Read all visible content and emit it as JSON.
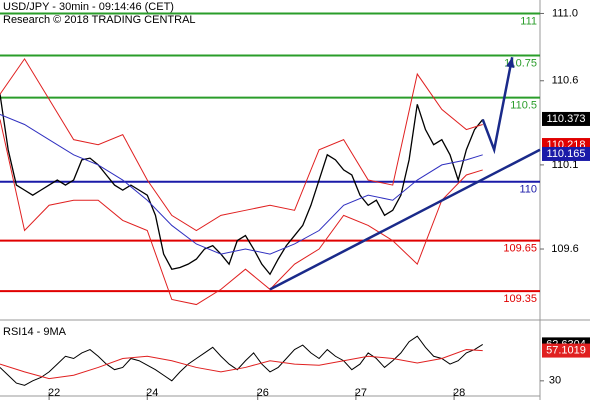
{
  "chart_data": {
    "type": "line",
    "title": "USD/JPY - 30min - 09:14:46 (CET)",
    "subtitle": "Research © 2018 TRADING CENTRAL",
    "xlim": [
      0,
      66
    ],
    "xticks": [
      {
        "value": 6,
        "label": "22"
      },
      {
        "value": 18,
        "label": "24"
      },
      {
        "value": 31.5,
        "label": "26"
      },
      {
        "value": 43.5,
        "label": "27"
      },
      {
        "value": 55.5,
        "label": "28"
      }
    ],
    "ylim": [
      109.19,
      111.08
    ],
    "yticks": [
      {
        "value": 111,
        "label": "111.0"
      },
      110.6,
      110.1,
      109.6
    ],
    "series": [
      {
        "name": "Price",
        "color": "#000000",
        "x": [
          0,
          1,
          2,
          3,
          4,
          5,
          6,
          7,
          8,
          9,
          10,
          11,
          12,
          13,
          14,
          15,
          16,
          17,
          18,
          19,
          20,
          21,
          22,
          23,
          24,
          25,
          26,
          27,
          28,
          29,
          30,
          31,
          32,
          33,
          34,
          35,
          36,
          37,
          38,
          39,
          40,
          41,
          42,
          43,
          44,
          45,
          46,
          47,
          48,
          49,
          50,
          51,
          52,
          53,
          54,
          55,
          56,
          57,
          58,
          59
        ],
        "values": [
          110.52,
          110.19,
          109.98,
          109.95,
          109.92,
          109.95,
          109.98,
          110.01,
          109.98,
          110.01,
          110.13,
          110.14,
          110.1,
          110.04,
          109.98,
          109.95,
          109.98,
          109.95,
          109.92,
          109.8,
          109.57,
          109.48,
          109.49,
          109.51,
          109.54,
          109.6,
          109.62,
          109.57,
          109.51,
          109.65,
          109.68,
          109.6,
          109.51,
          109.45,
          109.54,
          109.62,
          109.68,
          109.74,
          109.86,
          110.01,
          110.16,
          110.13,
          110.07,
          110.04,
          109.92,
          109.86,
          109.89,
          109.8,
          109.83,
          109.92,
          110.13,
          110.46,
          110.31,
          110.22,
          110.25,
          110.16,
          110.01,
          110.19,
          110.31,
          110.37
        ]
      },
      {
        "name": "Upper band",
        "color": "#e02020",
        "x": [
          0,
          3,
          6,
          9,
          12,
          15,
          18,
          21,
          24,
          27,
          30,
          33,
          36,
          39,
          42,
          45,
          48,
          51,
          54,
          57,
          59
        ],
        "values": [
          110.52,
          110.73,
          110.49,
          110.25,
          110.22,
          110.28,
          110.01,
          109.8,
          109.71,
          109.8,
          109.83,
          109.86,
          109.83,
          110.19,
          110.25,
          110.01,
          109.98,
          110.64,
          110.43,
          110.31,
          110.34
        ]
      },
      {
        "name": "Lower band",
        "color": "#e02020",
        "x": [
          0,
          3,
          6,
          9,
          12,
          15,
          18,
          21,
          24,
          27,
          30,
          33,
          36,
          39,
          42,
          45,
          48,
          51,
          54,
          57,
          59
        ],
        "values": [
          110.37,
          109.71,
          109.86,
          109.89,
          109.89,
          109.77,
          109.71,
          109.3,
          109.27,
          109.36,
          109.48,
          109.36,
          109.51,
          109.6,
          109.8,
          109.74,
          109.65,
          109.51,
          109.89,
          110.04,
          110.07
        ]
      },
      {
        "name": "MA",
        "color": "#3030c0",
        "x": [
          0,
          3,
          6,
          9,
          12,
          15,
          18,
          21,
          24,
          27,
          30,
          33,
          36,
          39,
          42,
          45,
          48,
          51,
          54,
          57,
          59
        ],
        "values": [
          110.4,
          110.34,
          110.25,
          110.16,
          110.1,
          110.01,
          109.89,
          109.74,
          109.63,
          109.57,
          109.6,
          109.57,
          109.63,
          109.71,
          109.86,
          109.92,
          109.89,
          110.01,
          110.1,
          110.13,
          110.16
        ]
      }
    ],
    "levels": [
      {
        "value": 111,
        "color": "#2a9d2a"
      },
      {
        "value": 110.75,
        "color": "#2a9d2a"
      },
      {
        "value": 110.5,
        "color": "#2a9d2a"
      },
      {
        "value": 110,
        "color": "#1a1aa8"
      },
      {
        "value": 109.65,
        "color": "#e00000"
      },
      {
        "value": 109.35,
        "color": "#e00000"
      }
    ],
    "trendline": {
      "color": "#1a2a8a",
      "x": [
        33,
        66
      ],
      "values": [
        109.36,
        110.19
      ]
    },
    "projection": {
      "color": "#1a2a8a",
      "x": [
        59,
        60.4,
        62.6
      ],
      "values": [
        110.37,
        110.19,
        110.74
      ]
    },
    "price_boxes": [
      {
        "value": 110.373,
        "color": "#000000"
      },
      {
        "value": 110.218,
        "color": "#e00000"
      },
      {
        "value": 110.165,
        "color": "#1a1aa8"
      }
    ],
    "rsi": {
      "label": "RSI14 - 9MA",
      "ylim": [
        20,
        80
      ],
      "yticks": [
        30
      ],
      "series": [
        {
          "name": "RSI14",
          "color": "#000000",
          "x": [
            0,
            1,
            2,
            3,
            4,
            5,
            6,
            7,
            8,
            9,
            10,
            11,
            12,
            13,
            14,
            15,
            16,
            17,
            18,
            19,
            20,
            21,
            22,
            23,
            24,
            25,
            26,
            27,
            28,
            29,
            30,
            31,
            32,
            33,
            34,
            35,
            36,
            37,
            38,
            39,
            40,
            41,
            42,
            43,
            44,
            45,
            46,
            47,
            48,
            49,
            50,
            51,
            52,
            53,
            54,
            55,
            56,
            57,
            58,
            59
          ],
          "values": [
            42,
            35,
            28,
            26,
            30,
            33,
            38,
            45,
            52,
            50,
            55,
            58,
            52,
            45,
            40,
            42,
            50,
            48,
            44,
            40,
            35,
            30,
            38,
            45,
            50,
            55,
            60,
            52,
            45,
            40,
            48,
            55,
            45,
            38,
            42,
            50,
            58,
            62,
            55,
            50,
            58,
            52,
            48,
            40,
            45,
            55,
            50,
            42,
            48,
            55,
            65,
            70,
            60,
            52,
            50,
            45,
            48,
            55,
            58,
            62.63
          ]
        },
        {
          "name": "9MA",
          "color": "#e02020",
          "x": [
            0,
            3,
            6,
            9,
            12,
            15,
            18,
            21,
            24,
            27,
            30,
            33,
            36,
            39,
            42,
            45,
            48,
            51,
            54,
            57,
            59
          ],
          "values": [
            45,
            38,
            32,
            35,
            42,
            50,
            52,
            48,
            42,
            38,
            42,
            48,
            45,
            44,
            48,
            52,
            50,
            46,
            50,
            58,
            57.1
          ]
        }
      ],
      "boxes": [
        {
          "value": 62.6304,
          "color": "#000000"
        },
        {
          "value": 57.1019,
          "color": "#e02020"
        }
      ]
    }
  }
}
